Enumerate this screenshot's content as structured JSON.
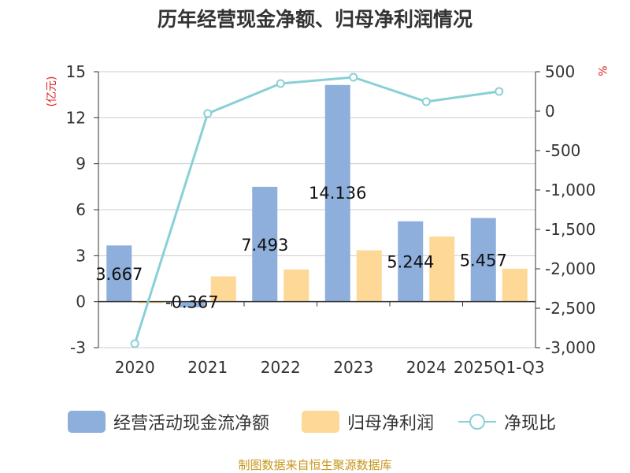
{
  "chart_data": {
    "type": "bar+line",
    "title": "历年经营现金净额、归母净利润情况",
    "categories": [
      "2020",
      "2021",
      "2022",
      "2023",
      "2024",
      "2025Q1-Q3"
    ],
    "left_axis": {
      "label": "(亿元)",
      "ylim": [
        -3,
        15
      ],
      "ticks": [
        "-3",
        "0",
        "3",
        "6",
        "9",
        "12",
        "15"
      ]
    },
    "right_axis": {
      "label": "%",
      "ylim": [
        -3000,
        500
      ],
      "ticks": [
        "-3,000",
        "-2,500",
        "-2,000",
        "-1,500",
        "-1,000",
        "-500",
        "0",
        "500"
      ]
    },
    "series": [
      {
        "name": "经营活动现金流净额",
        "type": "bar",
        "axis": "left",
        "color": "#8eaedb",
        "values": [
          3.667,
          -0.367,
          7.493,
          14.136,
          5.244,
          5.457
        ],
        "labels": [
          "3.667",
          "-0.367",
          "7.493",
          "14.136",
          "5.244",
          "5.457"
        ]
      },
      {
        "name": "归母净利润",
        "type": "bar",
        "axis": "left",
        "color": "#fdd896",
        "values": [
          -0.1,
          1.65,
          2.1,
          3.35,
          4.25,
          2.15
        ]
      },
      {
        "name": "净现比",
        "type": "line",
        "axis": "right",
        "color": "#89d0d6",
        "values": [
          -2950,
          -30,
          350,
          430,
          120,
          250
        ]
      }
    ],
    "legend_position": "bottom",
    "grid": true
  },
  "source_text": "制图数据来自恒生聚源数据库"
}
